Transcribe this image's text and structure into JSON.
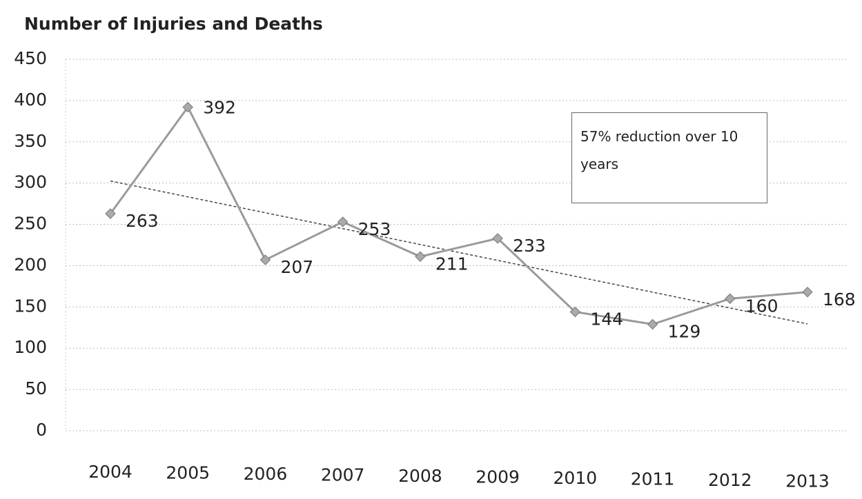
{
  "chart_data": {
    "type": "line",
    "title": "Number of Injuries and Deaths",
    "categories": [
      "2004",
      "2005",
      "2006",
      "2007",
      "2008",
      "2009",
      "2010",
      "2011",
      "2012",
      "2013"
    ],
    "values": [
      263,
      392,
      207,
      253,
      211,
      233,
      144,
      129,
      160,
      168
    ],
    "color": "#9a9a9a",
    "ylim": [
      0,
      450
    ],
    "yticks": [
      0,
      50,
      100,
      150,
      200,
      250,
      300,
      350,
      400,
      450
    ],
    "grid": true,
    "trendline": true,
    "annotation": "57% reduction over 10 years"
  }
}
